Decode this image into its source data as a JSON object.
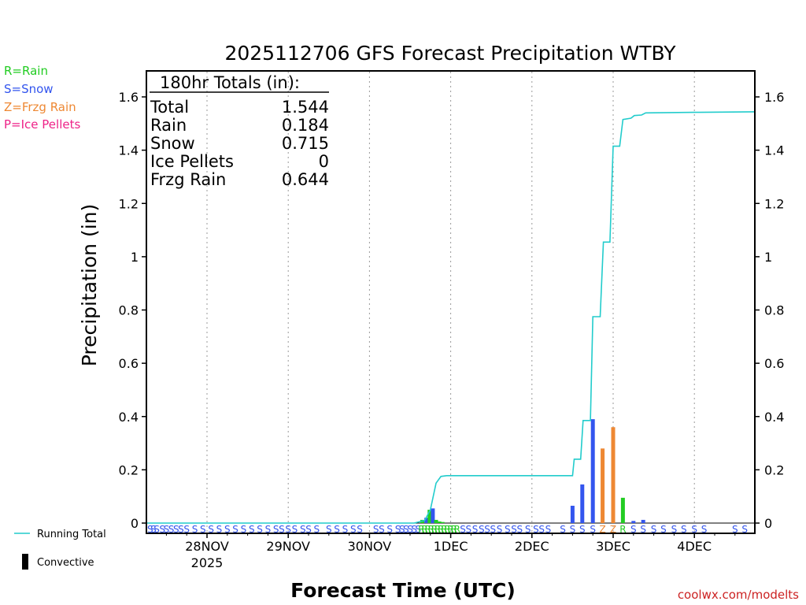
{
  "chart_data": {
    "type": "bar",
    "title": "2025112706 GFS Forecast Precipitation WTBY",
    "xlabel": "Forecast Time (UTC)",
    "ylabel": "Precipitation (in)",
    "ylim": [
      0,
      1.7
    ],
    "xlim": [
      -0.75,
      6.75
    ],
    "grid": "vertical-dotted",
    "y_ticks": [
      {
        "v": 0,
        "label": "0"
      },
      {
        "v": 0.2,
        "label": "0.2"
      },
      {
        "v": 0.4,
        "label": "0.4"
      },
      {
        "v": 0.6,
        "label": "0.6"
      },
      {
        "v": 0.8,
        "label": "0.8"
      },
      {
        "v": 1.0,
        "label": "1"
      },
      {
        "v": 1.2,
        "label": "1.2"
      },
      {
        "v": 1.4,
        "label": "1.4"
      },
      {
        "v": 1.6,
        "label": "1.6"
      }
    ],
    "x_ticks": [
      {
        "day": 0,
        "label": "28NOV"
      },
      {
        "day": 1,
        "label": "29NOV"
      },
      {
        "day": 2,
        "label": "30NOV"
      },
      {
        "day": 3,
        "label": "1DEC"
      },
      {
        "day": 4,
        "label": "2DEC"
      },
      {
        "day": 5,
        "label": "3DEC"
      },
      {
        "day": 6,
        "label": "4DEC"
      }
    ],
    "year_label": "2025",
    "type_legend": [
      {
        "label": "R=Rain",
        "color": "#22cc22"
      },
      {
        "label": "S=Snow",
        "color": "#3355ee"
      },
      {
        "label": "Z=Frzg Rain",
        "color": "#ee8833"
      },
      {
        "label": "P=Ice Pellets",
        "color": "#ee2288"
      }
    ],
    "series_legend": [
      {
        "label": "Running Total",
        "color": "#22cccc",
        "kind": "line"
      },
      {
        "label": "Convective",
        "color": "#000000",
        "kind": "bar"
      }
    ],
    "totals": {
      "header": "180hr Totals (in):",
      "rows": [
        {
          "label": "Total",
          "value": "1.544"
        },
        {
          "label": "Rain",
          "value": "0.184"
        },
        {
          "label": "Snow",
          "value": "0.715"
        },
        {
          "label": "Ice Pellets",
          "value": "0"
        },
        {
          "label": "Frzg Rain",
          "value": "0.644"
        }
      ]
    },
    "bars": [
      {
        "day": 2.65,
        "value": 0.012,
        "type": "R"
      },
      {
        "day": 2.7,
        "value": 0.02,
        "type": "S"
      },
      {
        "day": 2.74,
        "value": 0.05,
        "type": "R"
      },
      {
        "day": 2.78,
        "value": 0.055,
        "type": "S"
      },
      {
        "day": 2.82,
        "value": 0.012,
        "type": "R"
      },
      {
        "day": 2.86,
        "value": 0.006,
        "type": "R"
      },
      {
        "day": 2.9,
        "value": 0.004,
        "type": "R"
      },
      {
        "day": 4.5,
        "value": 0.065,
        "type": "S"
      },
      {
        "day": 4.62,
        "value": 0.145,
        "type": "S"
      },
      {
        "day": 4.75,
        "value": 0.39,
        "type": "S"
      },
      {
        "day": 4.87,
        "value": 0.28,
        "type": "Z"
      },
      {
        "day": 5.0,
        "value": 0.36,
        "type": "Z"
      },
      {
        "day": 5.12,
        "value": 0.095,
        "type": "R"
      },
      {
        "day": 5.25,
        "value": 0.008,
        "type": "S"
      },
      {
        "day": 5.37,
        "value": 0.012,
        "type": "S"
      }
    ],
    "running_total": [
      {
        "day": -0.75,
        "value": 0.0
      },
      {
        "day": 2.55,
        "value": 0.0
      },
      {
        "day": 2.68,
        "value": 0.01
      },
      {
        "day": 2.75,
        "value": 0.05
      },
      {
        "day": 2.82,
        "value": 0.15
      },
      {
        "day": 2.88,
        "value": 0.175
      },
      {
        "day": 2.95,
        "value": 0.178
      },
      {
        "day": 4.45,
        "value": 0.178
      },
      {
        "day": 4.5,
        "value": 0.178
      },
      {
        "day": 4.52,
        "value": 0.24
      },
      {
        "day": 4.6,
        "value": 0.24
      },
      {
        "day": 4.63,
        "value": 0.385
      },
      {
        "day": 4.72,
        "value": 0.385
      },
      {
        "day": 4.75,
        "value": 0.775
      },
      {
        "day": 4.84,
        "value": 0.775
      },
      {
        "day": 4.88,
        "value": 1.055
      },
      {
        "day": 4.96,
        "value": 1.055
      },
      {
        "day": 5.0,
        "value": 1.415
      },
      {
        "day": 5.08,
        "value": 1.415
      },
      {
        "day": 5.12,
        "value": 1.515
      },
      {
        "day": 5.22,
        "value": 1.52
      },
      {
        "day": 5.26,
        "value": 1.53
      },
      {
        "day": 5.35,
        "value": 1.532
      },
      {
        "day": 5.4,
        "value": 1.54
      },
      {
        "day": 6.0,
        "value": 1.542
      },
      {
        "day": 6.75,
        "value": 1.544
      }
    ],
    "type_strip": [
      {
        "day": -0.7,
        "t": "S"
      },
      {
        "day": -0.66,
        "t": "S"
      },
      {
        "day": -0.62,
        "t": "S"
      },
      {
        "day": -0.55,
        "t": "S"
      },
      {
        "day": -0.5,
        "t": "S"
      },
      {
        "day": -0.44,
        "t": "S"
      },
      {
        "day": -0.38,
        "t": "S"
      },
      {
        "day": -0.32,
        "t": "S"
      },
      {
        "day": -0.25,
        "t": "S"
      },
      {
        "day": -0.15,
        "t": "S"
      },
      {
        "day": -0.05,
        "t": "S"
      },
      {
        "day": 0.05,
        "t": "S"
      },
      {
        "day": 0.15,
        "t": "S"
      },
      {
        "day": 0.25,
        "t": "S"
      },
      {
        "day": 0.35,
        "t": "S"
      },
      {
        "day": 0.45,
        "t": "S"
      },
      {
        "day": 0.55,
        "t": "S"
      },
      {
        "day": 0.65,
        "t": "S"
      },
      {
        "day": 0.75,
        "t": "S"
      },
      {
        "day": 0.85,
        "t": "S"
      },
      {
        "day": 0.92,
        "t": "S"
      },
      {
        "day": 1.0,
        "t": "S"
      },
      {
        "day": 1.08,
        "t": "S"
      },
      {
        "day": 1.18,
        "t": "S"
      },
      {
        "day": 1.25,
        "t": "S"
      },
      {
        "day": 1.35,
        "t": "S"
      },
      {
        "day": 1.5,
        "t": "S"
      },
      {
        "day": 1.6,
        "t": "S"
      },
      {
        "day": 1.7,
        "t": "S"
      },
      {
        "day": 1.8,
        "t": "S"
      },
      {
        "day": 1.88,
        "t": "S"
      },
      {
        "day": 2.08,
        "t": "S"
      },
      {
        "day": 2.15,
        "t": "S"
      },
      {
        "day": 2.25,
        "t": "S"
      },
      {
        "day": 2.35,
        "t": "S"
      },
      {
        "day": 2.4,
        "t": "S"
      },
      {
        "day": 2.45,
        "t": "S"
      },
      {
        "day": 2.5,
        "t": "S"
      },
      {
        "day": 2.55,
        "t": "S"
      },
      {
        "day": 2.6,
        "t": "S"
      },
      {
        "day": 2.64,
        "t": "R"
      },
      {
        "day": 2.68,
        "t": "R"
      },
      {
        "day": 2.72,
        "t": "R"
      },
      {
        "day": 2.76,
        "t": "R"
      },
      {
        "day": 2.8,
        "t": "R"
      },
      {
        "day": 2.84,
        "t": "R"
      },
      {
        "day": 2.88,
        "t": "R"
      },
      {
        "day": 2.92,
        "t": "R"
      },
      {
        "day": 2.96,
        "t": "R"
      },
      {
        "day": 3.0,
        "t": "R"
      },
      {
        "day": 3.04,
        "t": "R"
      },
      {
        "day": 3.08,
        "t": "R"
      },
      {
        "day": 3.15,
        "t": "S"
      },
      {
        "day": 3.22,
        "t": "S"
      },
      {
        "day": 3.3,
        "t": "S"
      },
      {
        "day": 3.38,
        "t": "S"
      },
      {
        "day": 3.45,
        "t": "S"
      },
      {
        "day": 3.52,
        "t": "S"
      },
      {
        "day": 3.6,
        "t": "S"
      },
      {
        "day": 3.7,
        "t": "S"
      },
      {
        "day": 3.78,
        "t": "S"
      },
      {
        "day": 3.85,
        "t": "S"
      },
      {
        "day": 3.95,
        "t": "S"
      },
      {
        "day": 4.05,
        "t": "S"
      },
      {
        "day": 4.12,
        "t": "S"
      },
      {
        "day": 4.2,
        "t": "S"
      },
      {
        "day": 4.38,
        "t": "S"
      },
      {
        "day": 4.5,
        "t": "S"
      },
      {
        "day": 4.62,
        "t": "S"
      },
      {
        "day": 4.75,
        "t": "S"
      },
      {
        "day": 4.87,
        "t": "Z"
      },
      {
        "day": 5.0,
        "t": "Z"
      },
      {
        "day": 5.12,
        "t": "R"
      },
      {
        "day": 5.25,
        "t": "S"
      },
      {
        "day": 5.37,
        "t": "S"
      },
      {
        "day": 5.5,
        "t": "S"
      },
      {
        "day": 5.62,
        "t": "S"
      },
      {
        "day": 5.75,
        "t": "S"
      },
      {
        "day": 5.87,
        "t": "S"
      },
      {
        "day": 6.0,
        "t": "S"
      },
      {
        "day": 6.12,
        "t": "S"
      },
      {
        "day": 6.5,
        "t": "S"
      },
      {
        "day": 6.62,
        "t": "S"
      },
      {
        "day": 6.72,
        "t": "S"
      }
    ],
    "watermark": "coolwx.com/modelts"
  }
}
